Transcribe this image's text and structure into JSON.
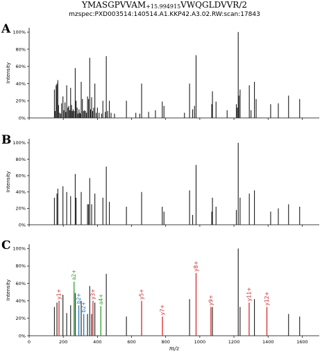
{
  "header": {
    "title_prefix": "YMASGPVVAM",
    "title_mod": "+15.994915",
    "title_suffix": "VWQGLDVVR/2",
    "subtitle": "mzspec:PXD003514:140514.A1.KKP42.A3.02.RW:scan:17843"
  },
  "colors": {
    "unannotated": "#1a1a1a",
    "y_ion": "#d62728",
    "b_ion": "#1f77b4",
    "a_ion": "#2ca02c"
  },
  "chart_data": [
    {
      "type": "bar",
      "panel": "A",
      "xlabel": "",
      "ylabel": "Intensity",
      "xlim": [
        0,
        1700
      ],
      "ylim": [
        0,
        105
      ],
      "y_ticks": [
        "0%",
        "20%",
        "40%",
        "60%",
        "80%",
        "100%"
      ],
      "x_ticks": [],
      "peaks": [
        {
          "mz": 148,
          "i": 33
        },
        {
          "mz": 152,
          "i": 8
        },
        {
          "mz": 158,
          "i": 38
        },
        {
          "mz": 163,
          "i": 40
        },
        {
          "mz": 168,
          "i": 44
        },
        {
          "mz": 172,
          "i": 15
        },
        {
          "mz": 178,
          "i": 6
        },
        {
          "mz": 185,
          "i": 5
        },
        {
          "mz": 190,
          "i": 17
        },
        {
          "mz": 198,
          "i": 25
        },
        {
          "mz": 203,
          "i": 9
        },
        {
          "mz": 210,
          "i": 18
        },
        {
          "mz": 215,
          "i": 7
        },
        {
          "mz": 220,
          "i": 38
        },
        {
          "mz": 227,
          "i": 12
        },
        {
          "mz": 232,
          "i": 14
        },
        {
          "mz": 238,
          "i": 9
        },
        {
          "mz": 243,
          "i": 35
        },
        {
          "mz": 248,
          "i": 15
        },
        {
          "mz": 253,
          "i": 8
        },
        {
          "mz": 258,
          "i": 10
        },
        {
          "mz": 264,
          "i": 8
        },
        {
          "mz": 270,
          "i": 58
        },
        {
          "mz": 275,
          "i": 20
        },
        {
          "mz": 281,
          "i": 12
        },
        {
          "mz": 286,
          "i": 5
        },
        {
          "mz": 292,
          "i": 10
        },
        {
          "mz": 297,
          "i": 6
        },
        {
          "mz": 300,
          "i": 5
        },
        {
          "mz": 305,
          "i": 42
        },
        {
          "mz": 312,
          "i": 22
        },
        {
          "mz": 318,
          "i": 8
        },
        {
          "mz": 324,
          "i": 9
        },
        {
          "mz": 330,
          "i": 8
        },
        {
          "mz": 336,
          "i": 6
        },
        {
          "mz": 342,
          "i": 25
        },
        {
          "mz": 348,
          "i": 22
        },
        {
          "mz": 355,
          "i": 70
        },
        {
          "mz": 360,
          "i": 10
        },
        {
          "mz": 366,
          "i": 24
        },
        {
          "mz": 372,
          "i": 8
        },
        {
          "mz": 378,
          "i": 12
        },
        {
          "mz": 385,
          "i": 40
        },
        {
          "mz": 393,
          "i": 6
        },
        {
          "mz": 400,
          "i": 12
        },
        {
          "mz": 410,
          "i": 6
        },
        {
          "mz": 425,
          "i": 5
        },
        {
          "mz": 432,
          "i": 20
        },
        {
          "mz": 446,
          "i": 7
        },
        {
          "mz": 452,
          "i": 72
        },
        {
          "mz": 460,
          "i": 8
        },
        {
          "mz": 470,
          "i": 20
        },
        {
          "mz": 480,
          "i": 6
        },
        {
          "mz": 500,
          "i": 5
        },
        {
          "mz": 570,
          "i": 20
        },
        {
          "mz": 625,
          "i": 6
        },
        {
          "mz": 648,
          "i": 5
        },
        {
          "mz": 659,
          "i": 40
        },
        {
          "mz": 700,
          "i": 7
        },
        {
          "mz": 740,
          "i": 9
        },
        {
          "mz": 780,
          "i": 19
        },
        {
          "mz": 790,
          "i": 14
        },
        {
          "mz": 910,
          "i": 6
        },
        {
          "mz": 940,
          "i": 40
        },
        {
          "mz": 958,
          "i": 10
        },
        {
          "mz": 969,
          "i": 14
        },
        {
          "mz": 978,
          "i": 73
        },
        {
          "mz": 1070,
          "i": 16
        },
        {
          "mz": 1074,
          "i": 31
        },
        {
          "mz": 1095,
          "i": 19
        },
        {
          "mz": 1160,
          "i": 9
        },
        {
          "mz": 1214,
          "i": 16
        },
        {
          "mz": 1220,
          "i": 12
        },
        {
          "mz": 1225,
          "i": 100
        },
        {
          "mz": 1229,
          "i": 26
        },
        {
          "mz": 1236,
          "i": 33
        },
        {
          "mz": 1290,
          "i": 38
        },
        {
          "mz": 1300,
          "i": 9
        },
        {
          "mz": 1320,
          "i": 42
        },
        {
          "mz": 1330,
          "i": 22
        },
        {
          "mz": 1415,
          "i": 16
        },
        {
          "mz": 1460,
          "i": 17
        },
        {
          "mz": 1520,
          "i": 26
        },
        {
          "mz": 1585,
          "i": 22
        }
      ],
      "ion_labels": []
    },
    {
      "type": "bar",
      "panel": "B",
      "xlabel": "",
      "ylabel": "Intensity",
      "xlim": [
        0,
        1700
      ],
      "ylim": [
        0,
        105
      ],
      "y_ticks": [
        "0%",
        "20%",
        "40%",
        "60%",
        "80%",
        "100%"
      ],
      "x_ticks": [],
      "peaks": [
        {
          "mz": 148,
          "i": 33
        },
        {
          "mz": 163,
          "i": 38
        },
        {
          "mz": 168,
          "i": 44
        },
        {
          "mz": 198,
          "i": 47
        },
        {
          "mz": 220,
          "i": 40
        },
        {
          "mz": 243,
          "i": 35
        },
        {
          "mz": 270,
          "i": 62
        },
        {
          "mz": 275,
          "i": 33
        },
        {
          "mz": 305,
          "i": 40
        },
        {
          "mz": 342,
          "i": 25
        },
        {
          "mz": 348,
          "i": 25
        },
        {
          "mz": 355,
          "i": 57
        },
        {
          "mz": 366,
          "i": 25
        },
        {
          "mz": 385,
          "i": 38
        },
        {
          "mz": 432,
          "i": 33
        },
        {
          "mz": 452,
          "i": 71
        },
        {
          "mz": 470,
          "i": 28
        },
        {
          "mz": 570,
          "i": 22
        },
        {
          "mz": 659,
          "i": 40
        },
        {
          "mz": 780,
          "i": 22
        },
        {
          "mz": 790,
          "i": 16
        },
        {
          "mz": 940,
          "i": 42
        },
        {
          "mz": 958,
          "i": 12
        },
        {
          "mz": 978,
          "i": 73
        },
        {
          "mz": 1070,
          "i": 16
        },
        {
          "mz": 1074,
          "i": 33
        },
        {
          "mz": 1095,
          "i": 22
        },
        {
          "mz": 1214,
          "i": 18
        },
        {
          "mz": 1225,
          "i": 100
        },
        {
          "mz": 1236,
          "i": 33
        },
        {
          "mz": 1290,
          "i": 38
        },
        {
          "mz": 1320,
          "i": 42
        },
        {
          "mz": 1415,
          "i": 16
        },
        {
          "mz": 1460,
          "i": 20
        },
        {
          "mz": 1520,
          "i": 25
        },
        {
          "mz": 1585,
          "i": 22
        }
      ],
      "ion_labels": []
    },
    {
      "type": "bar",
      "panel": "C",
      "xlabel": "m/z",
      "ylabel": "Intensity",
      "xlim": [
        0,
        1700
      ],
      "ylim": [
        0,
        105
      ],
      "y_ticks": [
        "0%",
        "20%",
        "40%",
        "60%",
        "80%",
        "100%"
      ],
      "x_ticks": [
        "0",
        "200",
        "400",
        "600",
        "800",
        "1000",
        "1200",
        "1400",
        "1600"
      ],
      "peaks": [
        {
          "mz": 148,
          "i": 33
        },
        {
          "mz": 163,
          "i": 38
        },
        {
          "mz": 175,
          "i": 40,
          "ion": "y"
        },
        {
          "mz": 198,
          "i": 47
        },
        {
          "mz": 220,
          "i": 26
        },
        {
          "mz": 243,
          "i": 35
        },
        {
          "mz": 263,
          "i": 62,
          "ion": "a"
        },
        {
          "mz": 270,
          "i": 49
        },
        {
          "mz": 291,
          "i": 35,
          "ion": "b"
        },
        {
          "mz": 305,
          "i": 40
        },
        {
          "mz": 320,
          "i": 25,
          "ion": "b"
        },
        {
          "mz": 342,
          "i": 25
        },
        {
          "mz": 355,
          "i": 57
        },
        {
          "mz": 366,
          "i": 25
        },
        {
          "mz": 374,
          "i": 40,
          "ion": "y"
        },
        {
          "mz": 385,
          "i": 38
        },
        {
          "mz": 420,
          "i": 34,
          "ion": "a"
        },
        {
          "mz": 452,
          "i": 71
        },
        {
          "mz": 570,
          "i": 22
        },
        {
          "mz": 659,
          "i": 40,
          "ion": "y"
        },
        {
          "mz": 781,
          "i": 22,
          "ion": "y"
        },
        {
          "mz": 940,
          "i": 42
        },
        {
          "mz": 978,
          "i": 72,
          "ion": "y"
        },
        {
          "mz": 1065,
          "i": 33,
          "ion": "y"
        },
        {
          "mz": 1074,
          "i": 33
        },
        {
          "mz": 1225,
          "i": 100
        },
        {
          "mz": 1236,
          "i": 33
        },
        {
          "mz": 1289,
          "i": 38,
          "ion": "y"
        },
        {
          "mz": 1320,
          "i": 42
        },
        {
          "mz": 1393,
          "i": 33,
          "ion": "y"
        },
        {
          "mz": 1520,
          "i": 25
        },
        {
          "mz": 1585,
          "i": 22
        }
      ],
      "ion_labels": [
        {
          "mz": 175,
          "i": 40,
          "text": "y1+",
          "ion": "y"
        },
        {
          "mz": 263,
          "i": 62,
          "text": "a2+",
          "ion": "a"
        },
        {
          "mz": 291,
          "i": 35,
          "text": "b2+",
          "ion": "b"
        },
        {
          "mz": 320,
          "i": 25,
          "text": "b2+",
          "ion": "b"
        },
        {
          "mz": 374,
          "i": 40,
          "text": "y3+",
          "ion": "y"
        },
        {
          "mz": 420,
          "i": 34,
          "text": "a4+",
          "ion": "a"
        },
        {
          "mz": 659,
          "i": 40,
          "text": "y5+",
          "ion": "y"
        },
        {
          "mz": 781,
          "i": 22,
          "text": "y7+",
          "ion": "y"
        },
        {
          "mz": 978,
          "i": 72,
          "text": "y8+",
          "ion": "y"
        },
        {
          "mz": 1065,
          "i": 33,
          "text": "y9+",
          "ion": "y"
        },
        {
          "mz": 1289,
          "i": 38,
          "text": "y11+",
          "ion": "y"
        },
        {
          "mz": 1393,
          "i": 33,
          "text": "y12+",
          "ion": "y"
        }
      ]
    }
  ]
}
